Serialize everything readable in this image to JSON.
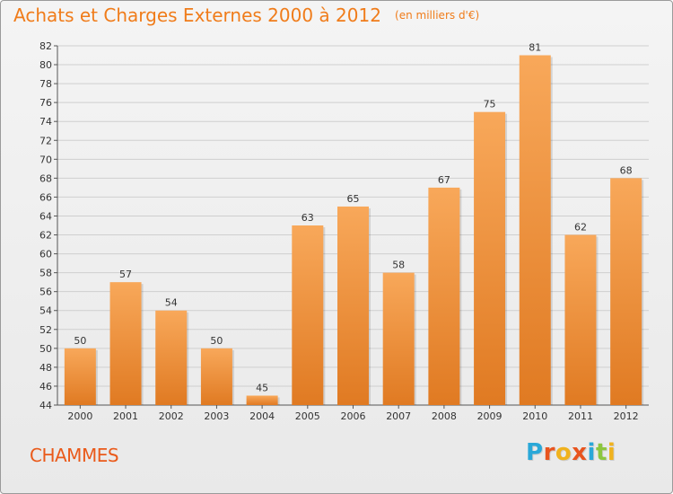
{
  "header": {
    "title": "Achats et Charges Externes 2000 à 2012",
    "subtitle": "(en milliers d'€)"
  },
  "footer": {
    "commune": "CHAMMES",
    "brand_letters": [
      {
        "char": "P",
        "color": "#2aa8d8"
      },
      {
        "char": "r",
        "color": "#e8541e"
      },
      {
        "char": "o",
        "color": "#f0b21e"
      },
      {
        "char": "x",
        "color": "#e8541e"
      },
      {
        "char": "i",
        "color": "#2aa8d8"
      },
      {
        "char": "t",
        "color": "#8cc63f"
      },
      {
        "char": "i",
        "color": "#f0b21e"
      }
    ]
  },
  "colors": {
    "title": "#f07c1a",
    "commune": "#ea5a1a",
    "bar_top": "#f8a85a",
    "bar_bottom": "#e07a22",
    "grid": "#cfcfcf",
    "axis": "#555555"
  },
  "chart_data": {
    "type": "bar",
    "title": "Achats et Charges Externes 2000 à 2012",
    "subtitle": "(en milliers d'€)",
    "xlabel": "",
    "ylabel": "",
    "categories": [
      "2000",
      "2001",
      "2002",
      "2003",
      "2004",
      "2005",
      "2006",
      "2007",
      "2008",
      "2009",
      "2010",
      "2011",
      "2012"
    ],
    "values": [
      50,
      57,
      54,
      50,
      45,
      63,
      65,
      58,
      67,
      75,
      81,
      62,
      68
    ],
    "ylim": [
      44,
      82
    ],
    "ytick_step": 2,
    "grid": true,
    "legend": "none"
  }
}
